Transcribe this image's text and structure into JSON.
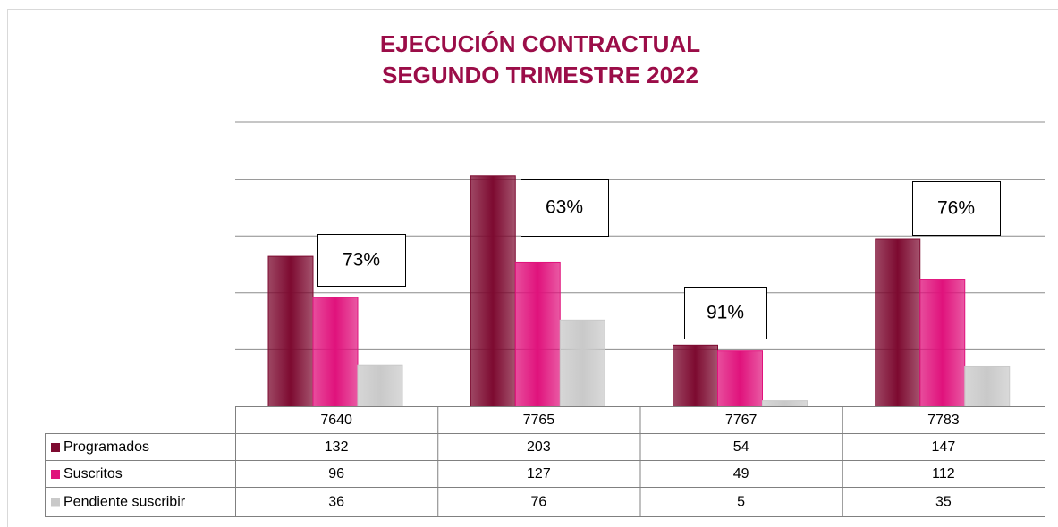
{
  "chart_data": {
    "type": "bar",
    "title": "EJECUCIÓN CONTRACTUAL",
    "subtitle": "SEGUNDO TRIMESTRE 2022",
    "categories": [
      "7640",
      "7765",
      "7767",
      "7783"
    ],
    "series": [
      {
        "name": "Programados",
        "color": "#7d0a30",
        "values": [
          132,
          203,
          54,
          147
        ]
      },
      {
        "name": "Suscritos",
        "color": "#e0127c",
        "values": [
          96,
          127,
          49,
          112
        ]
      },
      {
        "name": "Pendiente suscribir",
        "color": "#c9c9c9",
        "values": [
          36,
          76,
          5,
          35
        ]
      }
    ],
    "annotations": [
      "73%",
      "63%",
      "91%",
      "76%"
    ],
    "ylim": [
      0,
      250
    ],
    "yticks": [
      0,
      50,
      100,
      150,
      200,
      250
    ],
    "grid": true
  }
}
